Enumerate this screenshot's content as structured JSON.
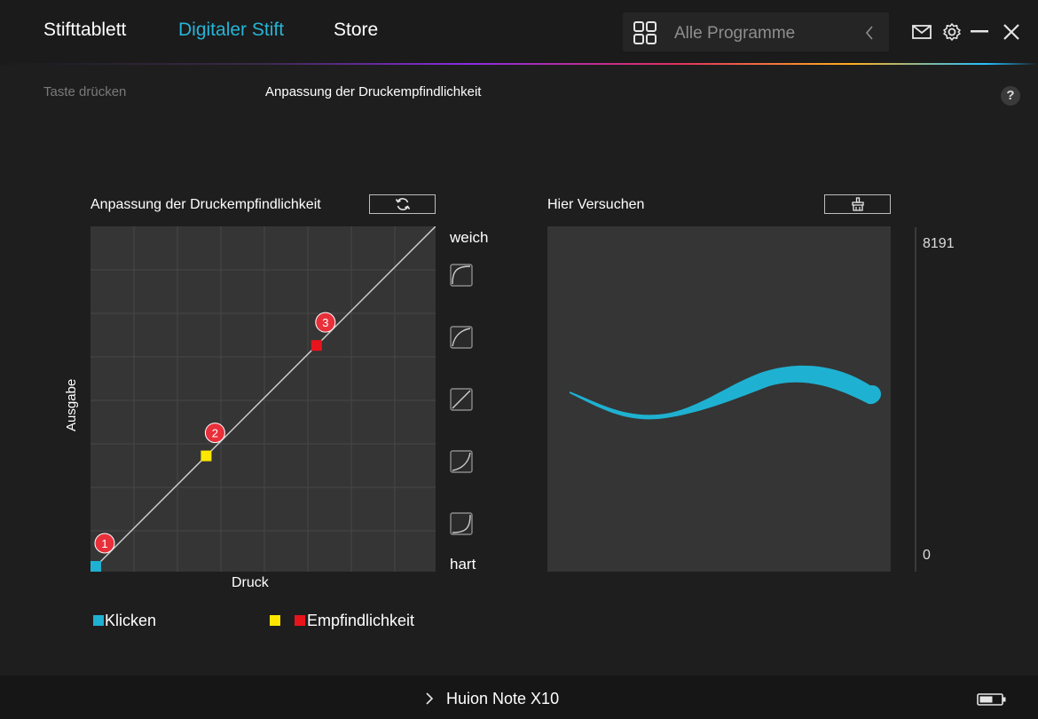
{
  "nav": {
    "tabs": [
      {
        "label": "Stifttablett"
      },
      {
        "label": "Digitaler Stift"
      },
      {
        "label": "Store"
      }
    ],
    "active_tab": "Digitaler Stift",
    "program_selector": "Alle Programme",
    "accent_color": "#27b4d6"
  },
  "subheader": {
    "left": "Taste drücken",
    "title": "Anpassung der Druckempfindlichkeit",
    "help": "?"
  },
  "pressure": {
    "title": "Anpassung der Druckempfindlichkeit",
    "reset_icon": "refresh-icon",
    "x_label": "Druck",
    "y_label": "Ausgabe",
    "soft_label": "weich",
    "hard_label": "hart",
    "points": [
      {
        "label": "1",
        "x": 0.0,
        "y": 0.0,
        "color": "#1fb1d1"
      },
      {
        "label": "2",
        "x": 0.33,
        "y": 0.33,
        "color": "#ffe600"
      },
      {
        "label": "3",
        "x": 0.66,
        "y": 0.66,
        "color": "#e8141c"
      }
    ],
    "presets": [
      "curve-soft-icon",
      "curve-medium-soft-icon",
      "curve-linear-icon",
      "curve-medium-hard-icon",
      "curve-hard-icon"
    ]
  },
  "legend": {
    "click_label": "Klicken",
    "sensitivity_label": "Empfindlichkeit",
    "click_color": "#1fb1d1",
    "sens_colors": [
      "#ffe600",
      "#e8141c"
    ]
  },
  "try": {
    "title": "Hier Versuchen",
    "clear_icon": "clear-brush-icon",
    "scale_max": "8191",
    "scale_min": "0",
    "stroke_color": "#1fb1d1"
  },
  "footer": {
    "device": "Huion Note X10",
    "battery_icon": "battery-icon"
  }
}
